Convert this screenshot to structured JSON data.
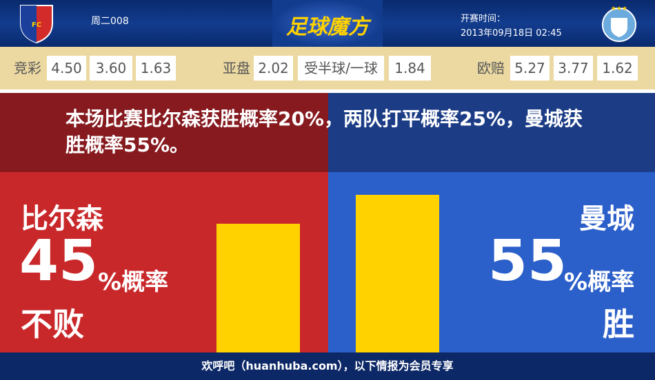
{
  "header": {
    "match_id": "周二008",
    "logo_text": "足球魔方",
    "kickoff_label": "开赛时间：",
    "kickoff_time": "2013年09月18日 02:45"
  },
  "odds": [
    {
      "label": "竞彩",
      "values": [
        "4.50",
        "3.60",
        "1.63"
      ]
    },
    {
      "label": "亚盘",
      "values": [
        "2.02",
        "受半球/一球",
        "1.84"
      ]
    },
    {
      "label": "欧赔",
      "values": [
        "5.27",
        "3.77",
        "1.62"
      ]
    }
  ],
  "summary": "本场比赛比尔森获胜概率20%，两队打平概率25%，曼城获胜概率55%。",
  "chart_data": {
    "type": "bar",
    "categories": [
      "比尔森",
      "曼城"
    ],
    "values": [
      45,
      55
    ],
    "unit": "%概率",
    "outcomes": [
      "不败",
      "胜"
    ],
    "color": "#ffd200"
  },
  "footer": "欢呼吧（huanhuba.com），以下情报为会员专享"
}
